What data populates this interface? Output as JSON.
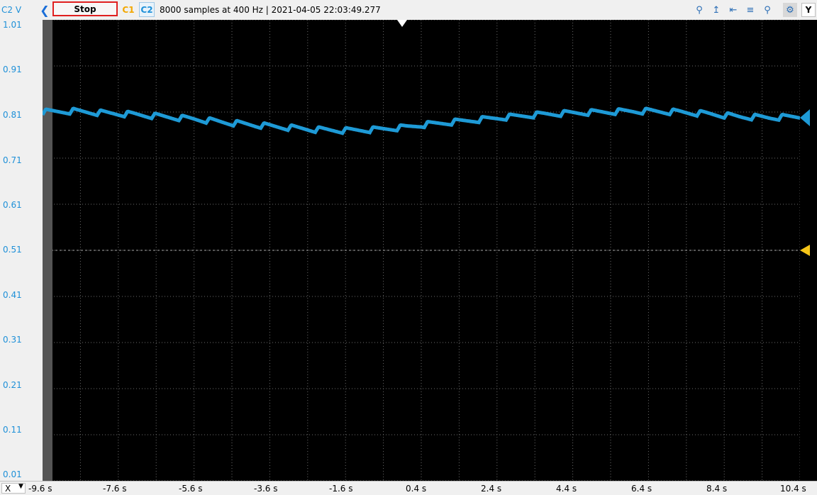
{
  "toolbar": {
    "channel_label": "C2 V",
    "back_icon": "chevron-left-icon",
    "stop_label": "Stop",
    "c1_label": "C1",
    "c2_label": "C2",
    "info": "8000 samples at 400 Hz | 2021-04-05 22:03:49.277",
    "y_label": "Y"
  },
  "x_axis_button": "X",
  "colors": {
    "trace": "#1e9ad6",
    "marker": "#f5c518",
    "grid": "#6b6b6b",
    "stop_border": "#e02020"
  },
  "chart_data": {
    "type": "line",
    "ylabel": "C2 V",
    "ylim": [
      0.01,
      1.01
    ],
    "y_ticks": [
      "1.01",
      "0.91",
      "0.81",
      "0.71",
      "0.61",
      "0.51",
      "0.41",
      "0.31",
      "0.21",
      "0.11",
      "0.01"
    ],
    "xlim": [
      -9.6,
      10.4
    ],
    "x_ticks": [
      "-9.6 s",
      "-7.6 s",
      "-5.6 s",
      "-3.6 s",
      "-1.6 s",
      "0.4 s",
      "2.4 s",
      "4.4 s",
      "6.4 s",
      "8.4 s",
      "10.4 s"
    ],
    "trigger_level": 0.51,
    "series": [
      {
        "x": [
          -9.6,
          -8.8,
          -8.0,
          -7.2,
          -6.4,
          -5.6,
          -4.8,
          -4.0,
          -3.2,
          -2.4,
          -1.6,
          -0.8,
          0.0,
          0.4,
          1.2,
          2.0,
          2.8,
          3.6,
          4.4,
          5.2,
          6.0,
          6.4,
          7.2,
          8.0,
          8.8,
          9.6,
          10.4
        ],
        "y": [
          0.81,
          0.812,
          0.808,
          0.805,
          0.8,
          0.795,
          0.788,
          0.782,
          0.777,
          0.772,
          0.77,
          0.772,
          0.777,
          0.782,
          0.788,
          0.794,
          0.8,
          0.805,
          0.808,
          0.81,
          0.812,
          0.812,
          0.81,
          0.806,
          0.8,
          0.798,
          0.8
        ]
      }
    ]
  }
}
